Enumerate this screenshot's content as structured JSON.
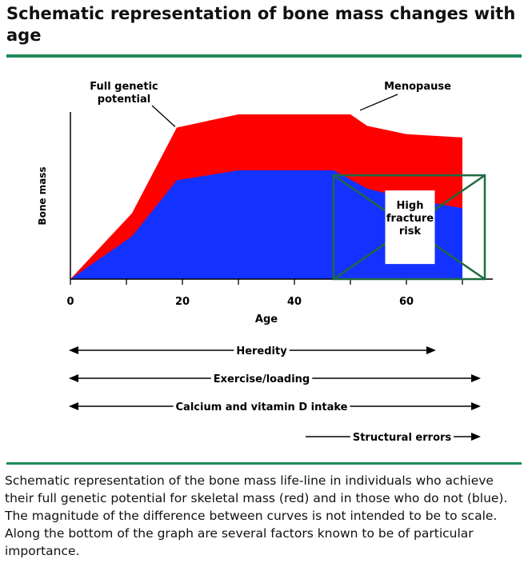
{
  "page": {
    "title": "Schematic representation of bone mass changes with age",
    "caption": "Schematic representation of the bone mass life-line in individuals who achieve their full genetic potential for skeletal mass (red) and in those who do not (blue). The magnitude of the difference between curves is not intended to be to scale. Along the bottom of the graph are several factors known to be of particular importance."
  },
  "colors": {
    "full_potential": "#ff0000",
    "below_potential": "#1432ff",
    "box": "#1f6a40",
    "rule": "#1f8a5a"
  },
  "chart_data": {
    "type": "area",
    "xlabel": "Age",
    "ylabel": "Bone mass",
    "xlim": [
      0,
      72
    ],
    "ylim": [
      0,
      100
    ],
    "x_ticks": [
      0,
      20,
      40,
      60
    ],
    "x_minor_ticks": [
      0,
      10,
      20,
      30,
      40,
      50,
      60,
      70
    ],
    "series": [
      {
        "key": "red",
        "x": [
          0,
          11,
          19,
          30,
          50,
          53,
          60,
          70
        ],
        "values": [
          0,
          40,
          92,
          100,
          100,
          93,
          88,
          86
        ]
      },
      {
        "key": "blue",
        "x": [
          0,
          11,
          19,
          30,
          47,
          53,
          60,
          70
        ],
        "values": [
          0,
          26,
          60,
          66,
          66,
          55,
          49,
          43
        ]
      }
    ],
    "annotations": [
      {
        "key": "full_genetic",
        "lines": [
          "Full genetic",
          "potential"
        ],
        "target_x": 19,
        "target_y": 92
      },
      {
        "key": "menopause",
        "lines": [
          "Menopause"
        ],
        "target_x": 51,
        "target_y": 101
      },
      {
        "key": "fracture",
        "lines": [
          "High",
          "fracture",
          "risk"
        ],
        "box_x": [
          47,
          74
        ],
        "box_y": [
          0,
          63
        ]
      }
    ],
    "factors": [
      {
        "label": "Heredity",
        "from_x": 0,
        "to_x": 65
      },
      {
        "label": "Exercise/loading",
        "from_x": 0,
        "to_x": 73
      },
      {
        "label": "Calcium and vitamin D intake",
        "from_x": 0,
        "to_x": 73
      },
      {
        "label": "Structural errors",
        "from_x": 42,
        "to_x": 73,
        "one_way": true
      }
    ]
  }
}
